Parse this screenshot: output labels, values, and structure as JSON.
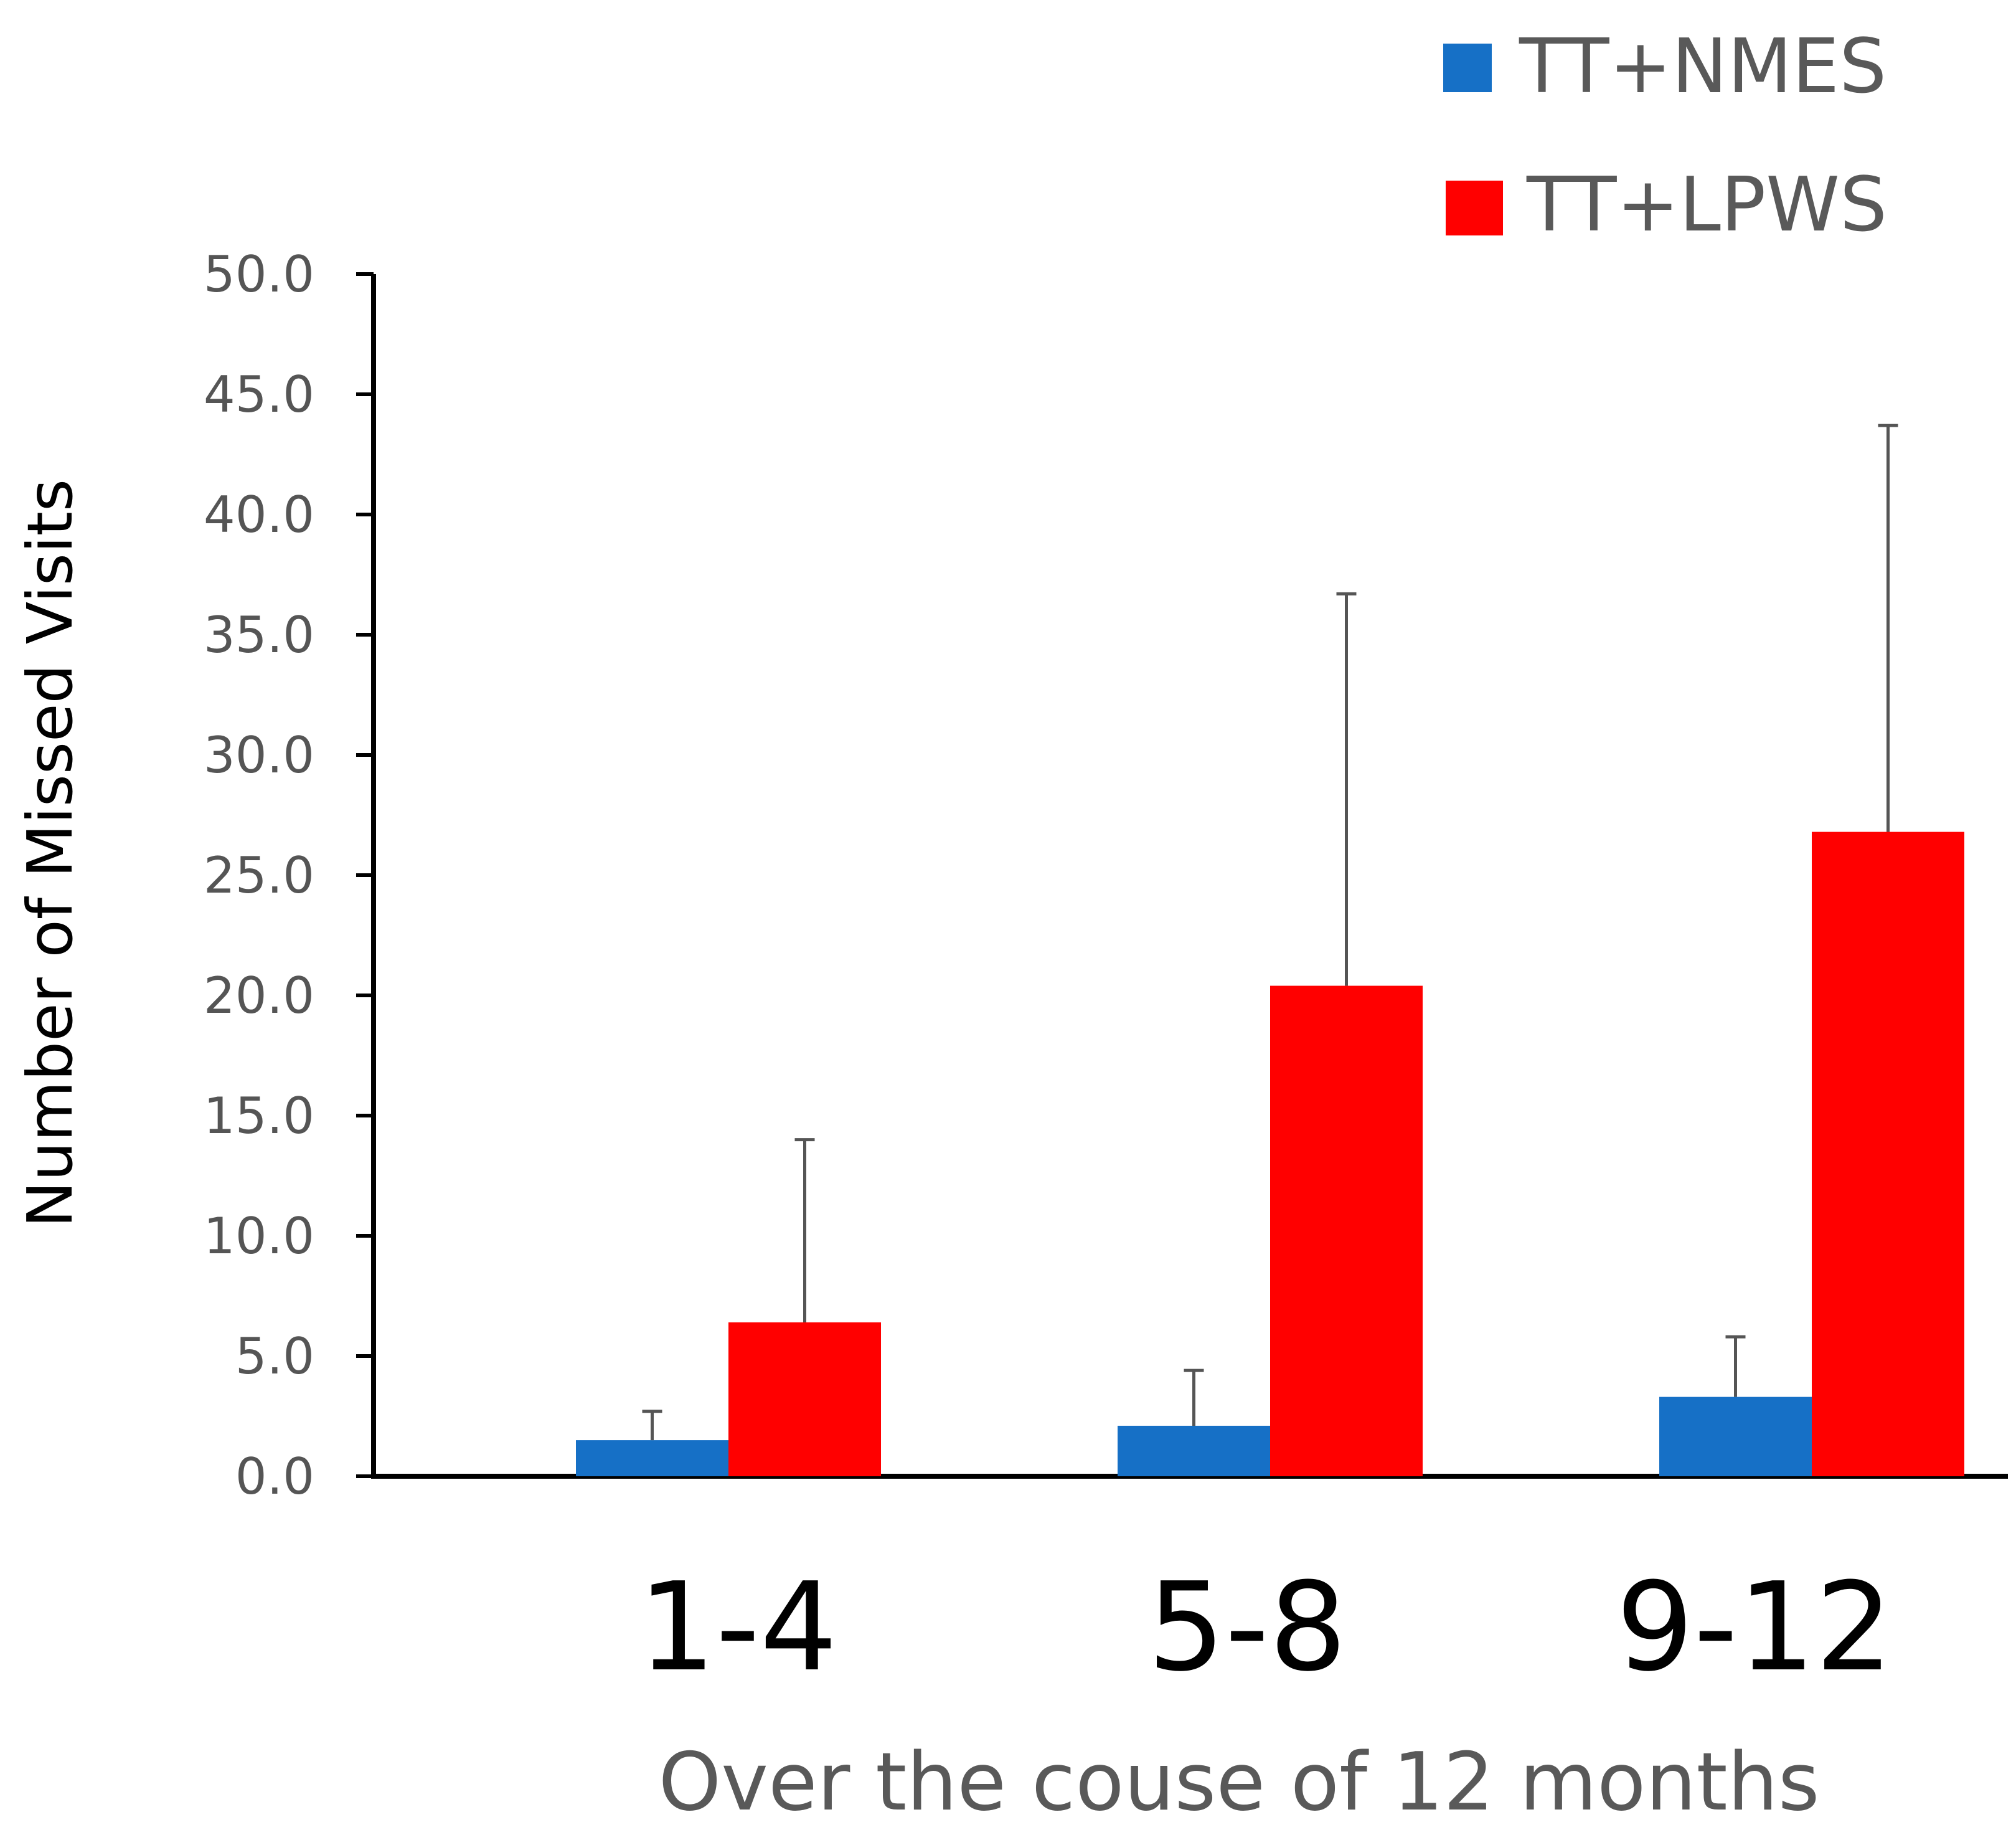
{
  "chart_data": {
    "type": "bar",
    "title": "",
    "xlabel": "Over the couse of 12 months",
    "ylabel": "Number of Missed Visits",
    "categories": [
      "1-4",
      "5-8",
      "9-12"
    ],
    "series": [
      {
        "name": "TT+NMES",
        "color": "#1670C6",
        "values": [
          1.5,
          2.1,
          3.3
        ],
        "error_upper": [
          2.7,
          4.4,
          5.8
        ]
      },
      {
        "name": "TT+LPWS",
        "color": "#FF0000",
        "values": [
          6.4,
          20.4,
          26.8
        ],
        "error_upper": [
          14.0,
          36.7,
          43.7
        ]
      }
    ],
    "ylim": [
      0,
      50
    ],
    "yticks": [
      "0.0",
      "5.0",
      "10.0",
      "15.0",
      "20.0",
      "25.0",
      "30.0",
      "35.0",
      "40.0",
      "45.0",
      "50.0"
    ],
    "ytick_values": [
      0,
      5,
      10,
      15,
      20,
      25,
      30,
      35,
      40,
      45,
      50
    ],
    "grid": false,
    "legend_position": "top-right"
  }
}
